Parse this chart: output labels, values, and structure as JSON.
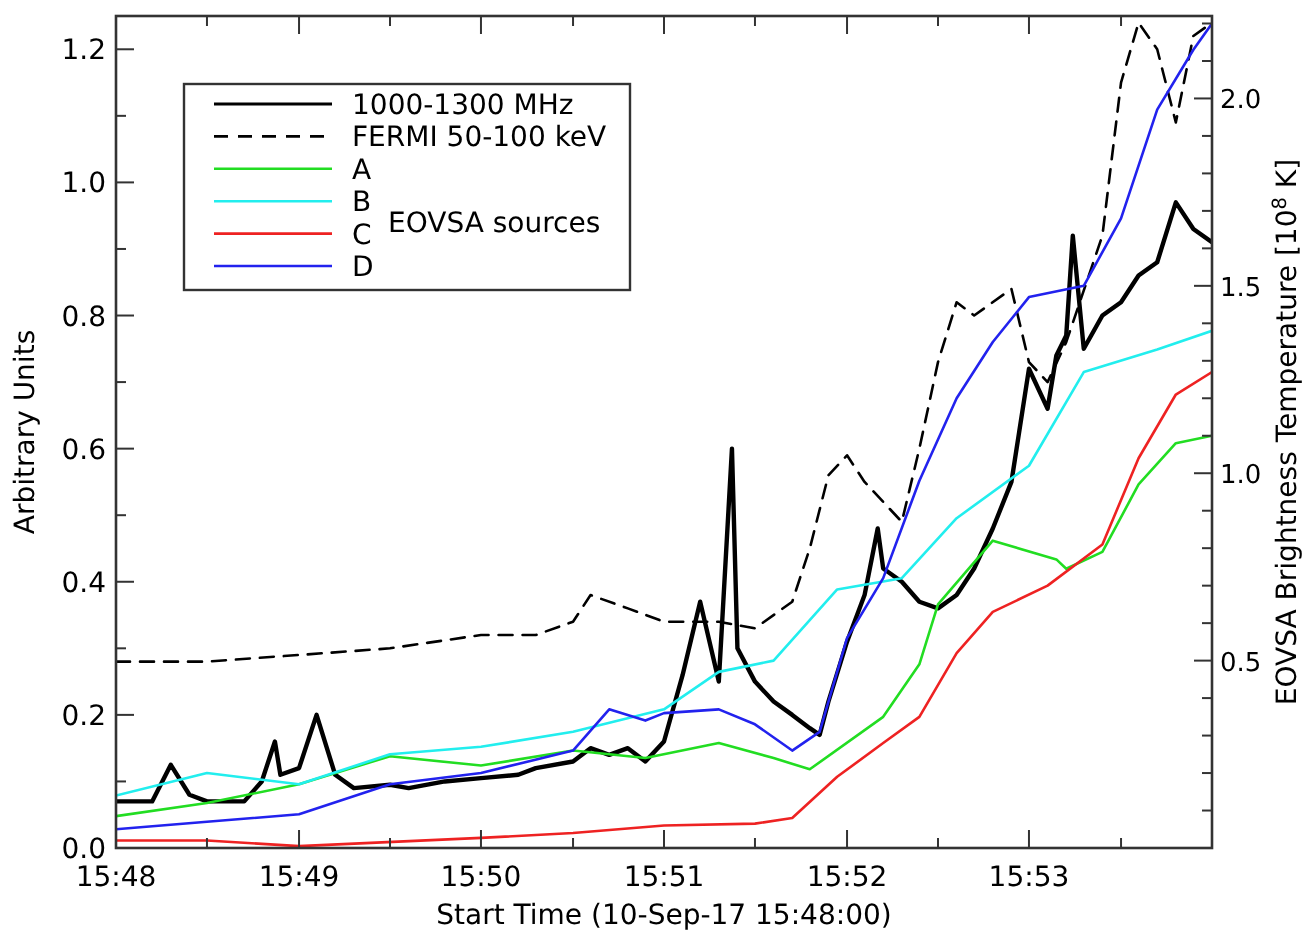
{
  "chart_data": {
    "type": "line",
    "xlabel": "Start Time (10-Sep-17  15:48:00)",
    "ylabel": "Arbitrary Units",
    "y2label": "EOVSA Brightness Temperature [10$^{8}$ K]",
    "xlim": [
      15.8,
      15.9
    ],
    "xticks": [
      {
        "value": 15.8,
        "label": "15:48"
      },
      {
        "value": 15.8083,
        "label": null
      },
      {
        "value": 15.8167,
        "label": "15:49"
      },
      {
        "value": 15.825,
        "label": null
      },
      {
        "value": 15.8333,
        "label": "15:50"
      },
      {
        "value": 15.8417,
        "label": null
      },
      {
        "value": 15.85,
        "label": "15:51"
      },
      {
        "value": 15.8583,
        "label": null
      },
      {
        "value": 15.8667,
        "label": "15:52"
      },
      {
        "value": 15.875,
        "label": null
      },
      {
        "value": 15.8833,
        "label": "15:53"
      },
      {
        "value": 15.8917,
        "label": null
      }
    ],
    "ylim": [
      0,
      1.25
    ],
    "yticks": [
      {
        "value": 0,
        "label": "0.0"
      },
      {
        "value": 0.1,
        "label": null
      },
      {
        "value": 0.2,
        "label": "0.2"
      },
      {
        "value": 0.3,
        "label": null
      },
      {
        "value": 0.4,
        "label": "0.4"
      },
      {
        "value": 0.5,
        "label": null
      },
      {
        "value": 0.6,
        "label": "0.6"
      },
      {
        "value": 0.7,
        "label": null
      },
      {
        "value": 0.8,
        "label": "0.8"
      },
      {
        "value": 0.9,
        "label": null
      },
      {
        "value": 1,
        "label": "1.0"
      },
      {
        "value": 1.1,
        "label": null
      },
      {
        "value": 1.2,
        "label": "1.2"
      }
    ],
    "y2lim": [
      0,
      2.22
    ],
    "y2ticks": [
      {
        "value": 0.1,
        "label": null
      },
      {
        "value": 0.2,
        "label": null
      },
      {
        "value": 0.3,
        "label": null
      },
      {
        "value": 0.4,
        "label": null
      },
      {
        "value": 0.5,
        "label": "0.5"
      },
      {
        "value": 0.6,
        "label": null
      },
      {
        "value": 0.7,
        "label": null
      },
      {
        "value": 0.8,
        "label": null
      },
      {
        "value": 0.9,
        "label": null
      },
      {
        "value": 1,
        "label": "1.0"
      },
      {
        "value": 1.1,
        "label": null
      },
      {
        "value": 1.2,
        "label": null
      },
      {
        "value": 1.3,
        "label": null
      },
      {
        "value": 1.4,
        "label": null
      },
      {
        "value": 1.5,
        "label": "1.5"
      },
      {
        "value": 1.6,
        "label": null
      },
      {
        "value": 1.7,
        "label": null
      },
      {
        "value": 1.8,
        "label": null
      },
      {
        "value": 1.9,
        "label": null
      },
      {
        "value": 2,
        "label": "2.0"
      },
      {
        "value": 2.1,
        "label": null
      },
      {
        "value": 2.2,
        "label": null
      }
    ],
    "legend": "top left",
    "annotations": [
      "EOVSA sources"
    ],
    "series": [
      {
        "name": "1000-1300 MHz",
        "color": "#000000",
        "line_style": "solid",
        "x": [
          15.8,
          15.8033,
          15.805,
          15.8067,
          15.8083,
          15.8117,
          15.8133,
          15.8145,
          15.815,
          15.8167,
          15.8183,
          15.82,
          15.8217,
          15.825,
          15.8267,
          15.83,
          15.8333,
          15.8367,
          15.8383,
          15.8417,
          15.8433,
          15.845,
          15.8467,
          15.8483,
          15.85,
          15.8517,
          15.8533,
          15.855,
          15.8562,
          15.8567,
          15.8583,
          15.86,
          15.8617,
          15.8633,
          15.8642,
          15.865,
          15.8667,
          15.8683,
          15.8695,
          15.87,
          15.8717,
          15.8733,
          15.875,
          15.8767,
          15.8783,
          15.88,
          15.8817,
          15.8833,
          15.885,
          15.8858,
          15.8867,
          15.8873,
          15.8883,
          15.89,
          15.8917,
          15.8933,
          15.895,
          15.8967,
          15.8983,
          15.9
        ],
        "values": [
          0.07,
          0.07,
          0.125,
          0.08,
          0.07,
          0.07,
          0.1,
          0.16,
          0.11,
          0.12,
          0.2,
          0.11,
          0.09,
          0.095,
          0.09,
          0.1,
          0.105,
          0.11,
          0.12,
          0.13,
          0.15,
          0.14,
          0.15,
          0.13,
          0.16,
          0.26,
          0.37,
          0.25,
          0.6,
          0.3,
          0.25,
          0.22,
          0.2,
          0.18,
          0.17,
          0.22,
          0.31,
          0.38,
          0.48,
          0.42,
          0.4,
          0.37,
          0.36,
          0.38,
          0.42,
          0.48,
          0.55,
          0.72,
          0.66,
          0.74,
          0.77,
          0.92,
          0.75,
          0.8,
          0.82,
          0.86,
          0.88,
          0.97,
          0.93,
          0.91
        ]
      },
      {
        "name": "FERMI 50-100 keV",
        "color": "#000000",
        "line_style": "dashed",
        "x": [
          15.8,
          15.8083,
          15.8167,
          15.825,
          15.8333,
          15.8383,
          15.8417,
          15.8433,
          15.8467,
          15.85,
          15.855,
          15.8583,
          15.8617,
          15.8633,
          15.865,
          15.8667,
          15.8683,
          15.87,
          15.8717,
          15.8733,
          15.875,
          15.8767,
          15.8783,
          15.8817,
          15.8833,
          15.885,
          15.8867,
          15.89,
          15.8917,
          15.8933,
          15.895,
          15.8967,
          15.8983,
          15.9
        ],
        "values": [
          0.28,
          0.28,
          0.29,
          0.3,
          0.32,
          0.32,
          0.34,
          0.38,
          0.36,
          0.34,
          0.34,
          0.33,
          0.37,
          0.45,
          0.56,
          0.59,
          0.55,
          0.52,
          0.49,
          0.6,
          0.73,
          0.82,
          0.8,
          0.84,
          0.73,
          0.7,
          0.76,
          0.92,
          1.15,
          1.24,
          1.2,
          1.09,
          1.22,
          1.24
        ]
      },
      {
        "name": "A",
        "color": "#22dd22",
        "line_style": "solid",
        "axis": "y2",
        "x": [
          15.8,
          15.8083,
          15.8167,
          15.825,
          15.8333,
          15.8417,
          15.8483,
          15.855,
          15.86,
          15.8633,
          15.87,
          15.8733,
          15.875,
          15.88,
          15.8858,
          15.8867,
          15.89,
          15.8933,
          15.8967,
          15.9
        ],
        "values": [
          0.085,
          0.12,
          0.17,
          0.245,
          0.22,
          0.26,
          0.24,
          0.28,
          0.24,
          0.21,
          0.35,
          0.49,
          0.65,
          0.82,
          0.77,
          0.745,
          0.79,
          0.97,
          1.08,
          1.1
        ]
      },
      {
        "name": "B",
        "color": "#22eeee",
        "line_style": "solid",
        "axis": "y2",
        "x": [
          15.8,
          15.8083,
          15.8167,
          15.825,
          15.8333,
          15.8417,
          15.85,
          15.855,
          15.86,
          15.8658,
          15.8717,
          15.8767,
          15.8833,
          15.8883,
          15.895,
          15.9
        ],
        "values": [
          0.14,
          0.2,
          0.17,
          0.25,
          0.27,
          0.31,
          0.37,
          0.47,
          0.5,
          0.69,
          0.72,
          0.88,
          1.02,
          1.27,
          1.33,
          1.38
        ]
      },
      {
        "name": "C",
        "color": "#ee2222",
        "line_style": "solid",
        "axis": "y2",
        "x": [
          15.8,
          15.8083,
          15.8167,
          15.8333,
          15.8417,
          15.85,
          15.8583,
          15.8617,
          15.8658,
          15.87,
          15.8733,
          15.8767,
          15.88,
          15.885,
          15.89,
          15.8933,
          15.8967,
          15.9
        ],
        "values": [
          0.02,
          0.02,
          0.005,
          0.027,
          0.04,
          0.06,
          0.065,
          0.08,
          0.19,
          0.28,
          0.35,
          0.52,
          0.63,
          0.7,
          0.81,
          1.04,
          1.21,
          1.27
        ]
      },
      {
        "name": "D",
        "color": "#2222ee",
        "line_style": "solid",
        "axis": "y2",
        "x": [
          15.8,
          15.8083,
          15.8167,
          15.825,
          15.8333,
          15.8417,
          15.845,
          15.8483,
          15.85,
          15.855,
          15.8583,
          15.8617,
          15.8642,
          15.8667,
          15.87,
          15.8733,
          15.8767,
          15.88,
          15.8833,
          15.8883,
          15.8917,
          15.895,
          15.8983,
          15.9
        ],
        "values": [
          0.05,
          0.07,
          0.09,
          0.17,
          0.2,
          0.26,
          0.37,
          0.34,
          0.36,
          0.37,
          0.33,
          0.26,
          0.31,
          0.56,
          0.72,
          0.98,
          1.2,
          1.35,
          1.47,
          1.5,
          1.68,
          1.97,
          2.13,
          2.2
        ]
      }
    ]
  }
}
